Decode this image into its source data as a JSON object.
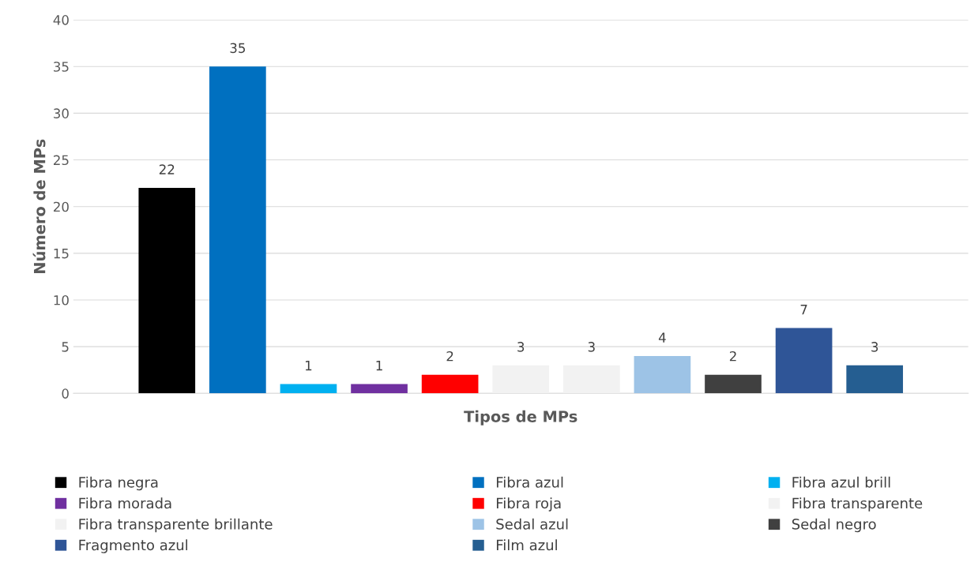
{
  "chart_data": {
    "type": "bar",
    "xlabel": "Tipos de MPs",
    "ylabel": "Número de MPs",
    "categories": [
      null
    ],
    "series": [
      {
        "name": "Fibra negra",
        "color": "#000000",
        "values": [
          22
        ]
      },
      {
        "name": "Fibra azul",
        "color": "#0070c0",
        "values": [
          35
        ]
      },
      {
        "name": "Fibra azul brill",
        "color": "#00b0f0",
        "values": [
          1
        ]
      },
      {
        "name": "Fibra morada",
        "color": "#7030a0",
        "values": [
          1
        ]
      },
      {
        "name": "Fibra roja",
        "color": "#ff0000",
        "values": [
          2
        ]
      },
      {
        "name": "Fibra transparente",
        "color": "#f2f2f2",
        "values": [
          3
        ]
      },
      {
        "name": "Fibra transparente brillante",
        "color": "#f2f2f2",
        "values": [
          3
        ]
      },
      {
        "name": "Sedal azul",
        "color": "#9dc3e6",
        "values": [
          4
        ]
      },
      {
        "name": "Sedal negro",
        "color": "#404040",
        "values": [
          2
        ]
      },
      {
        "name": "Fragmento azul",
        "color": "#2f5597",
        "values": [
          7
        ]
      },
      {
        "name": "Film azul",
        "color": "#255e91",
        "values": [
          3
        ]
      }
    ],
    "ylim": [
      0,
      40
    ],
    "yticks": [
      0,
      5,
      10,
      15,
      20,
      25,
      30,
      35,
      40
    ],
    "grid": "y",
    "data_labels": true,
    "legend": "bottom"
  }
}
